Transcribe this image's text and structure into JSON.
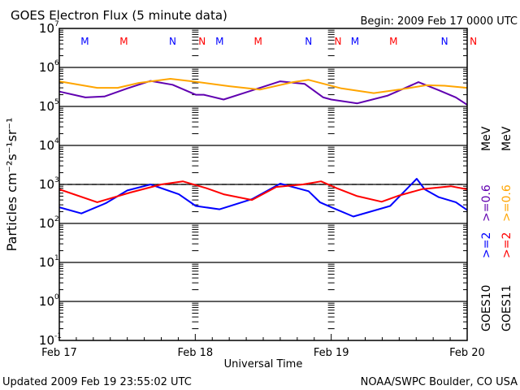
{
  "chart_data": {
    "type": "line",
    "title": "GOES Electron Flux (5 minute data)",
    "begin_label": "Begin: 2009 Feb 17 0000 UTC",
    "xlabel": "Universal Time",
    "ylabel": "Particles cm⁻²s⁻¹sr⁻¹",
    "x_unit": "hours since 2009 Feb 17 00:00 UTC",
    "xlim": [
      0,
      72
    ],
    "x_ticks": [
      {
        "x": 0,
        "label": "Feb 17"
      },
      {
        "x": 24,
        "label": "Feb 18"
      },
      {
        "x": 48,
        "label": "Feb 19"
      },
      {
        "x": 72,
        "label": "Feb 20"
      }
    ],
    "yscale": "log",
    "ylim_exp": [
      -1,
      7
    ],
    "y_ticks": [
      {
        "exp": 7,
        "label": "7"
      },
      {
        "exp": 6,
        "label": "6"
      },
      {
        "exp": 5,
        "label": "5"
      },
      {
        "exp": 4,
        "label": "4"
      },
      {
        "exp": 3,
        "label": "3"
      },
      {
        "exp": 2,
        "label": "2"
      },
      {
        "exp": 1,
        "label": "1"
      },
      {
        "exp": 0,
        "label": "0"
      },
      {
        "exp": -1,
        "label": "-1"
      }
    ],
    "threshold": 1000,
    "markers": [
      {
        "x": 4.5,
        "label": "M",
        "color": "#0000ff"
      },
      {
        "x": 11.4,
        "label": "M",
        "color": "#ff0000"
      },
      {
        "x": 20,
        "label": "N",
        "color": "#0000ff"
      },
      {
        "x": 25.2,
        "label": "N",
        "color": "#ff0000"
      },
      {
        "x": 28.3,
        "label": "M",
        "color": "#0000ff"
      },
      {
        "x": 35.1,
        "label": "M",
        "color": "#ff0000"
      },
      {
        "x": 44,
        "label": "N",
        "color": "#0000ff"
      },
      {
        "x": 49.2,
        "label": "N",
        "color": "#ff0000"
      },
      {
        "x": 52.2,
        "label": "M",
        "color": "#0000ff"
      },
      {
        "x": 59,
        "label": "M",
        "color": "#ff0000"
      },
      {
        "x": 68,
        "label": "N",
        "color": "#0000ff"
      },
      {
        "x": 73.1,
        "label": "N",
        "color": "#ff0000"
      }
    ],
    "series": [
      {
        "name": "GOES10 >=0.6 MeV",
        "legend": ">=0.6",
        "color": "#6000b0",
        "x": [
          0,
          4.6,
          8,
          12,
          16.1,
          20,
          24.1,
          25.5,
          29,
          33,
          39,
          43.3,
          46.6,
          48,
          52.6,
          58,
          63.4,
          67,
          70,
          72
        ],
        "values": [
          240000,
          170000,
          180000,
          290000,
          450000,
          360000,
          200000,
          200000,
          150000,
          230000,
          440000,
          380000,
          170000,
          150000,
          120000,
          190000,
          420000,
          260000,
          170000,
          110000
        ]
      },
      {
        "name": "GOES11 >=0.6 MeV",
        "legend": ">=0.6",
        "color": "#ffa500",
        "x": [
          0,
          6.7,
          10.3,
          14,
          19.6,
          24.1,
          30,
          35.4,
          41.2,
          44,
          49.8,
          55.5,
          60,
          64.8,
          68,
          72
        ],
        "values": [
          440000,
          300000,
          300000,
          400000,
          510000,
          430000,
          330000,
          270000,
          420000,
          480000,
          290000,
          220000,
          270000,
          350000,
          340000,
          300000
        ]
      },
      {
        "name": "GOES10 >=2 MeV",
        "legend": ">=2",
        "color": "#0000ff",
        "x": [
          0,
          3.9,
          8.2,
          12,
          16.1,
          21.1,
          24.1,
          28.3,
          34,
          39,
          44,
          46,
          48,
          51.9,
          58.4,
          63.1,
          64.5,
          67,
          70,
          72
        ],
        "values": [
          260,
          180,
          330,
          700,
          1000,
          560,
          280,
          230,
          420,
          1050,
          670,
          350,
          260,
          150,
          280,
          1400,
          750,
          470,
          350,
          220
        ]
      },
      {
        "name": "GOES11 >=2 MeV",
        "legend": ">=2",
        "color": "#ff0000",
        "x": [
          0,
          6.7,
          12.5,
          18,
          21.8,
          26,
          29,
          34,
          38.3,
          43,
          46.2,
          49,
          52.6,
          56.9,
          60,
          64.1,
          69.1,
          72
        ],
        "values": [
          750,
          350,
          620,
          1000,
          1200,
          800,
          560,
          400,
          860,
          1000,
          1200,
          800,
          500,
          360,
          520,
          760,
          900,
          750
        ]
      }
    ],
    "legend": {
      "placement": "right",
      "energy_unit": "MeV",
      "sat1": "GOES10",
      "sat2": "GOES11",
      "ge2": ">=2",
      "ge06": ">=0.6"
    },
    "footer_left": "Updated 2009 Feb 19 23:55:02 UTC",
    "footer_right": "NOAA/SWPC Boulder, CO USA"
  }
}
